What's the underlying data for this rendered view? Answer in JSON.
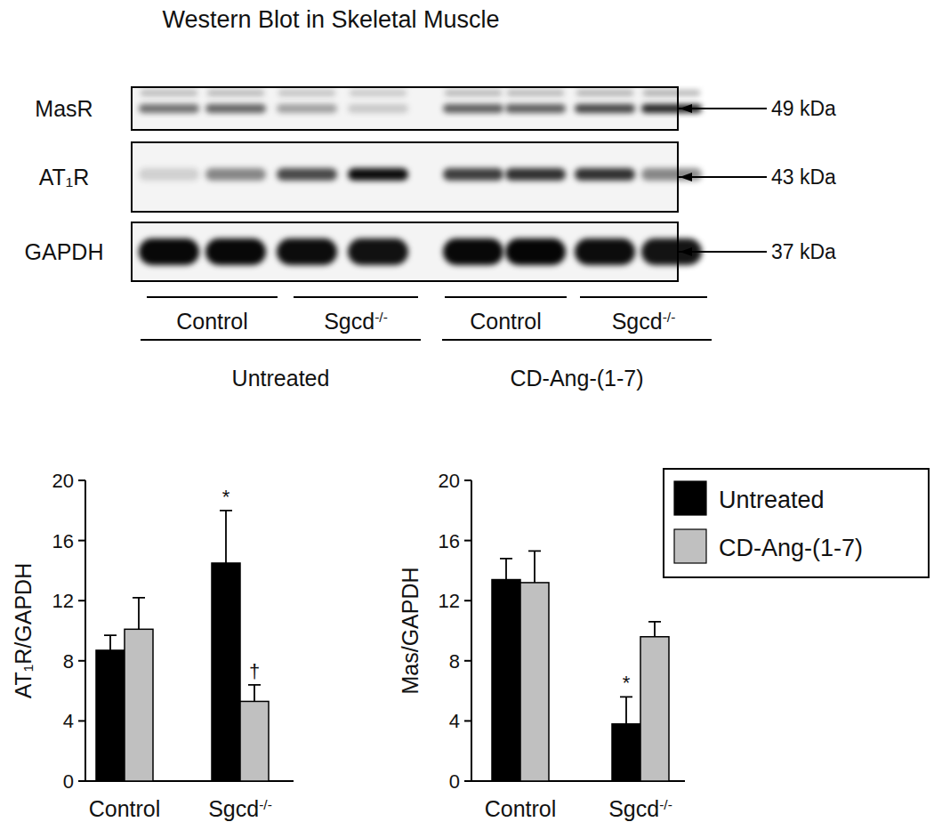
{
  "title": "Western Blot in Skeletal Muscle",
  "blot": {
    "rows": [
      {
        "label": "MasR",
        "size": "49 kDa"
      },
      {
        "label": "AT₁R",
        "size": "43 kDa"
      },
      {
        "label": "GAPDH",
        "size": "37 kDa"
      }
    ],
    "groups": [
      "Control",
      "Sgcd-/-",
      "Control",
      "Sgcd-/-"
    ],
    "treatments": [
      "Untreated",
      "CD-Ang-(1-7)"
    ]
  },
  "chart_data": [
    {
      "type": "bar",
      "y_label": "AT₁R/GAPDH",
      "categories": [
        "Control",
        "Sgcd-/-"
      ],
      "series": [
        {
          "name": "Untreated",
          "color": "#000000",
          "values": [
            8.7,
            14.5
          ],
          "errors": [
            1.0,
            3.5
          ],
          "annotations": [
            null,
            "*"
          ]
        },
        {
          "name": "CD-Ang-(1-7)",
          "color": "#c0c0c0",
          "values": [
            10.1,
            5.3
          ],
          "errors": [
            2.1,
            1.1
          ],
          "annotations": [
            null,
            "†"
          ]
        }
      ],
      "ylim": [
        0,
        20
      ],
      "yticks": [
        0,
        4,
        8,
        12,
        16,
        20
      ]
    },
    {
      "type": "bar",
      "y_label": "Mas/GAPDH",
      "categories": [
        "Control",
        "Sgcd-/-"
      ],
      "series": [
        {
          "name": "Untreated",
          "color": "#000000",
          "values": [
            13.4,
            3.8
          ],
          "errors": [
            1.4,
            1.8
          ],
          "annotations": [
            null,
            "*"
          ]
        },
        {
          "name": "CD-Ang-(1-7)",
          "color": "#c0c0c0",
          "values": [
            13.2,
            9.6
          ],
          "errors": [
            2.1,
            1.0
          ],
          "annotations": [
            null,
            null
          ]
        }
      ],
      "ylim": [
        0,
        20
      ],
      "yticks": [
        0,
        4,
        8,
        12,
        16,
        20
      ],
      "legend": "upper right"
    }
  ]
}
